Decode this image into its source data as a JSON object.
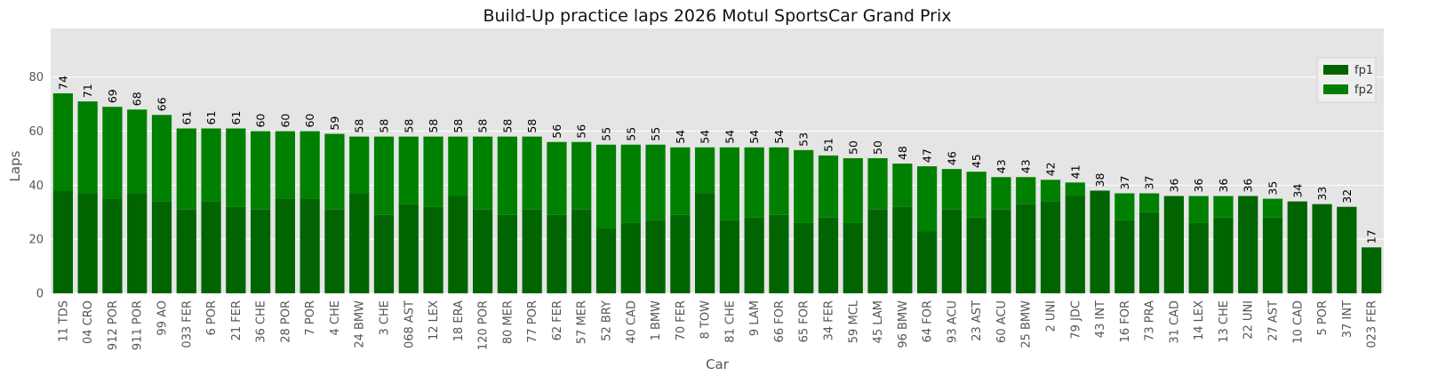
{
  "chart_data": {
    "type": "bar",
    "title": "Build-Up practice laps 2026 Motul SportsCar Grand Prix",
    "xlabel": "Car",
    "ylabel": "Laps",
    "ylim": [
      0,
      98
    ],
    "yticks": [
      0,
      20,
      40,
      60,
      80
    ],
    "grid": true,
    "stacked": true,
    "legend_position": "upper-right",
    "categories": [
      "11 TDS",
      "04 CRO",
      "912 POR",
      "911 POR",
      "99 AO",
      "033 FER",
      "6 POR",
      "21 FER",
      "36 CHE",
      "28 POR",
      "7 POR",
      "4 CHE",
      "24 BMW",
      "3 CHE",
      "068 AST",
      "12 LEX",
      "18 ERA",
      "120 POR",
      "80 MER",
      "77 POR",
      "62 FER",
      "57 MER",
      "52 BRY",
      "40 CAD",
      "1 BMW",
      "70 FER",
      "8 TOW",
      "81 CHE",
      "9 LAM",
      "66 FOR",
      "65 FOR",
      "34 FER",
      "59 MCL",
      "45 LAM",
      "96 BMW",
      "64 FOR",
      "93 ACU",
      "23 AST",
      "60 ACU",
      "25 BMW",
      "2 UNI",
      "79 JDC",
      "43 INT",
      "16 FOR",
      "73 PRA",
      "31 CAD",
      "14 LEX",
      "13 CHE",
      "22 UNI",
      "27 AST",
      "10 CAD",
      "5 POR",
      "37 INT",
      "023 FER"
    ],
    "series": [
      {
        "name": "fp1",
        "color": "#006400",
        "values": [
          38,
          37,
          35,
          37,
          34,
          31,
          34,
          32,
          31,
          35,
          35,
          31,
          37,
          29,
          33,
          32,
          36,
          31,
          29,
          31,
          29,
          31,
          24,
          26,
          27,
          29,
          37,
          27,
          28,
          29,
          26,
          28,
          26,
          31,
          32,
          23,
          31,
          28,
          31,
          33,
          34,
          36,
          38,
          27,
          30,
          36,
          26,
          28,
          36,
          28,
          34,
          33,
          32,
          17
        ]
      },
      {
        "name": "fp2",
        "color": "#008000",
        "values": [
          36,
          34,
          34,
          31,
          32,
          30,
          27,
          29,
          29,
          25,
          25,
          28,
          21,
          29,
          25,
          26,
          22,
          27,
          29,
          27,
          27,
          25,
          31,
          29,
          28,
          25,
          17,
          27,
          26,
          25,
          27,
          23,
          24,
          19,
          16,
          24,
          15,
          17,
          12,
          10,
          8,
          5,
          0,
          10,
          7,
          0,
          10,
          8,
          0,
          7,
          0,
          0,
          0,
          0
        ]
      }
    ],
    "totals": [
      74,
      71,
      69,
      68,
      66,
      61,
      61,
      61,
      60,
      60,
      60,
      59,
      58,
      58,
      58,
      58,
      58,
      58,
      58,
      58,
      56,
      56,
      55,
      55,
      55,
      54,
      54,
      54,
      54,
      54,
      53,
      51,
      50,
      50,
      48,
      47,
      46,
      45,
      43,
      43,
      42,
      41,
      38,
      37,
      37,
      36,
      36,
      36,
      36,
      35,
      34,
      33,
      32,
      17
    ]
  }
}
